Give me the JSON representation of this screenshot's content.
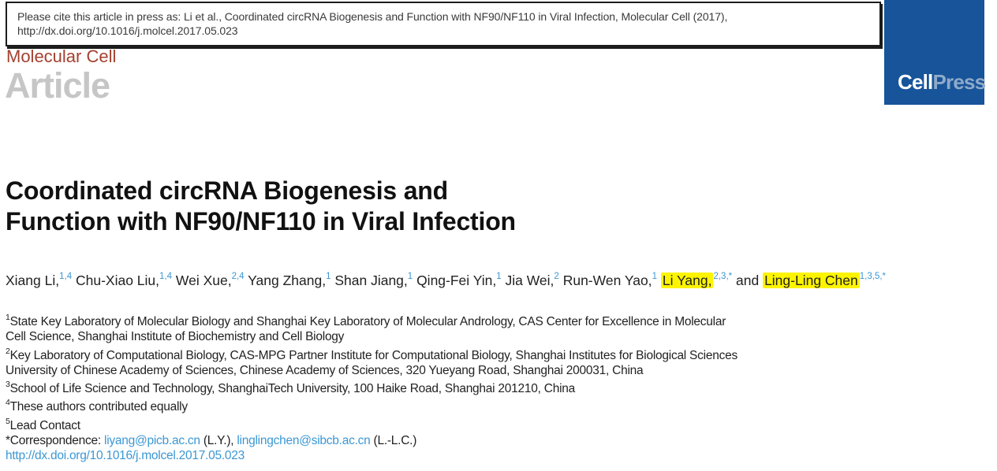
{
  "citation": {
    "line1": "Please cite this article in press as: Li et al., Coordinated circRNA Biogenesis and Function with NF90/NF110 in Viral Infection, Molecular Cell (2017),",
    "line2": "http://dx.doi.org/10.1016/j.molcel.2017.05.023"
  },
  "masthead": {
    "journal": "Molecular Cell",
    "section": "Article",
    "logo_cell": "Cell",
    "logo_press": "Press"
  },
  "title": {
    "lines": [
      "Coordinated circRNA Biogenesis and",
      "Function with NF90/NF110 in Viral Infection"
    ]
  },
  "authors": [
    {
      "name": "Xiang Li,",
      "sup": "1,4",
      "highlight": false
    },
    {
      "name": "Chu-Xiao Liu,",
      "sup": "1,4",
      "highlight": false
    },
    {
      "name": "Wei Xue,",
      "sup": "2,4",
      "highlight": false
    },
    {
      "name": "Yang Zhang,",
      "sup": "1",
      "highlight": false
    },
    {
      "name": "Shan Jiang,",
      "sup": "1",
      "highlight": false
    },
    {
      "name": "Qing-Fei Yin,",
      "sup": "1",
      "highlight": false
    },
    {
      "name": "Jia Wei,",
      "sup": "2",
      "highlight": false
    },
    {
      "name": "Run-Wen Yao,",
      "sup": "1",
      "highlight": false
    },
    {
      "name": "Li Yang,",
      "sup": "2,3,*",
      "highlight": true
    },
    {
      "prefix": "and ",
      "name": "Ling-Ling Chen",
      "sup": "1,3,5,*",
      "highlight": true
    }
  ],
  "footnotes": [
    {
      "sup": "1",
      "lines": [
        "State Key Laboratory of Molecular Biology and Shanghai Key Laboratory of Molecular Andrology, CAS Center for Excellence in Molecular",
        "Cell Science, Shanghai Institute of Biochemistry and Cell Biology"
      ]
    },
    {
      "sup": "2",
      "lines": [
        "Key Laboratory of Computational Biology, CAS-MPG Partner Institute for Computational Biology, Shanghai Institutes for Biological Sciences",
        "University of Chinese Academy of Sciences, Chinese Academy of Sciences, 320 Yueyang Road, Shanghai 200031, China"
      ]
    },
    {
      "sup": "3",
      "lines": [
        "School of Life Science and Technology, ShanghaiTech University, 100 Haike Road, Shanghai 201210, China"
      ]
    },
    {
      "sup": "4",
      "lines": [
        "These authors contributed equally"
      ]
    },
    {
      "sup": "5",
      "lines": [
        "Lead Contact"
      ]
    }
  ],
  "correspondence": {
    "prefix": "*Correspondence: ",
    "email1": "liyang@picb.ac.cn",
    "separator": " (L.Y.), ",
    "email2": "linglingchen@sibcb.ac.cn",
    "suffix": " (L.-L.C.)"
  },
  "doi": {
    "url": "http://dx.doi.org/10.1016/j.molcel.2017.05.023"
  },
  "colors": {
    "journal_red": "#a4402f",
    "article_gray": "#c6c6c6",
    "cellpress_blue": "#17549a",
    "press_text": "#8faac9",
    "link_blue": "#3b97d3",
    "highlight_yellow": "#fdf400"
  }
}
